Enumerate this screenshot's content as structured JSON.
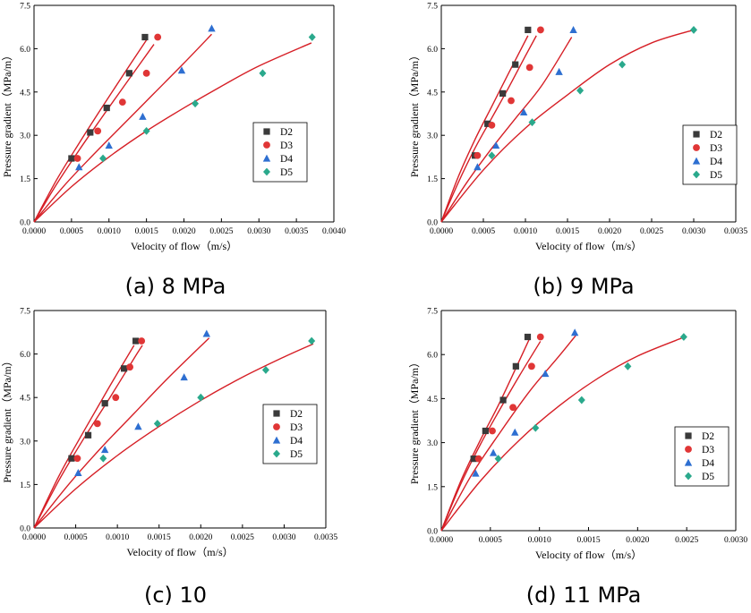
{
  "figure": {
    "series_colors": {
      "D2": "#3a3a3a",
      "D3": "#e03636",
      "D4": "#2e6fd1",
      "D5": "#2aa98c"
    },
    "fit_color": "#d61f26",
    "marker_shapes": {
      "D2": "square",
      "D3": "circle",
      "D4": "triangle",
      "D5": "diamond"
    }
  },
  "chart_data": [
    {
      "type": "scatter",
      "caption": "(a) 8 MPa",
      "xlabel": "Velocity of flow（m/s）",
      "ylabel": "Pressure gradient（MPa/m）",
      "xlim": [
        0,
        0.004
      ],
      "ylim": [
        0,
        7.5
      ],
      "xticks": [
        "0.0000",
        "0.0005",
        "0.0010",
        "0.0015",
        "0.0020",
        "0.0025",
        "0.0030",
        "0.0035",
        "0.0040"
      ],
      "yticks": [
        "0.0",
        "1.5",
        "3.0",
        "4.5",
        "6.0",
        "7.5"
      ],
      "legend": [
        "D2",
        "D3",
        "D4",
        "D5"
      ],
      "series": [
        {
          "name": "D2",
          "x": [
            0.0005,
            0.00075,
            0.00097,
            0.00127,
            0.00148
          ],
          "y": [
            2.2,
            3.1,
            3.95,
            5.15,
            6.4
          ]
        },
        {
          "name": "D3",
          "x": [
            0.00058,
            0.00085,
            0.00118,
            0.0015,
            0.00165
          ],
          "y": [
            2.2,
            3.15,
            4.15,
            5.15,
            6.4
          ]
        },
        {
          "name": "D4",
          "x": [
            0.0006,
            0.001,
            0.00145,
            0.00197,
            0.00237
          ],
          "y": [
            1.9,
            2.65,
            3.65,
            5.25,
            6.7
          ]
        },
        {
          "name": "D5",
          "x": [
            0.00092,
            0.0015,
            0.00215,
            0.00305,
            0.00371
          ],
          "y": [
            2.2,
            3.15,
            4.1,
            5.15,
            6.4
          ]
        }
      ],
      "fits": [
        {
          "name": "D2",
          "x": [
            0,
            0.0003,
            0.0006,
            0.0009,
            0.0012,
            0.0015
          ],
          "y": [
            0,
            1.45,
            2.72,
            3.94,
            5.13,
            6.3
          ]
        },
        {
          "name": "D3",
          "x": [
            0,
            0.0003,
            0.0006,
            0.0009,
            0.0012,
            0.0016
          ],
          "y": [
            0,
            1.3,
            2.48,
            3.6,
            4.7,
            6.15
          ]
        },
        {
          "name": "D4",
          "x": [
            0,
            0.0004,
            0.0008,
            0.0012,
            0.0016,
            0.002,
            0.00237
          ],
          "y": [
            0,
            1.25,
            2.35,
            3.4,
            4.45,
            5.5,
            6.5
          ]
        },
        {
          "name": "D5",
          "x": [
            0,
            0.0005,
            0.001,
            0.0015,
            0.002,
            0.0025,
            0.003,
            0.0037
          ],
          "y": [
            0,
            1.22,
            2.25,
            3.15,
            3.95,
            4.7,
            5.4,
            6.2
          ]
        }
      ]
    },
    {
      "type": "scatter",
      "caption": "(b) 9 MPa",
      "xlabel": "Velocity of flow（m/s）",
      "ylabel": "Pressure gradient（MPa/m）",
      "xlim": [
        0,
        0.0035
      ],
      "ylim": [
        0,
        7.5
      ],
      "xticks": [
        "0.0000",
        "0.0005",
        "0.0010",
        "0.0015",
        "0.0020",
        "0.0025",
        "0.0030",
        "0.0035"
      ],
      "yticks": [
        "0.0",
        "1.5",
        "3.0",
        "4.5",
        "6.0",
        "7.5"
      ],
      "legend": [
        "D2",
        "D3",
        "D4",
        "D5"
      ],
      "series": [
        {
          "name": "D2",
          "x": [
            0.0004,
            0.00055,
            0.00073,
            0.00088,
            0.00103
          ],
          "y": [
            2.3,
            3.4,
            4.45,
            5.45,
            6.65
          ]
        },
        {
          "name": "D3",
          "x": [
            0.00043,
            0.0006,
            0.00083,
            0.00105,
            0.00118
          ],
          "y": [
            2.3,
            3.35,
            4.2,
            5.35,
            6.65
          ]
        },
        {
          "name": "D4",
          "x": [
            0.00043,
            0.00065,
            0.00098,
            0.0014,
            0.00157
          ],
          "y": [
            1.9,
            2.65,
            3.8,
            5.2,
            6.65
          ]
        },
        {
          "name": "D5",
          "x": [
            0.0006,
            0.00108,
            0.00165,
            0.00215,
            0.003
          ],
          "y": [
            2.3,
            3.45,
            4.55,
            5.45,
            6.65
          ]
        }
      ],
      "fits": [
        {
          "name": "D2",
          "x": [
            0,
            0.0002,
            0.0004,
            0.0006,
            0.0008,
            0.00103
          ],
          "y": [
            0,
            1.55,
            2.85,
            4.0,
            5.15,
            6.45
          ]
        },
        {
          "name": "D3",
          "x": [
            0,
            0.0002,
            0.0004,
            0.0006,
            0.0008,
            0.001,
            0.00113
          ],
          "y": [
            0,
            1.35,
            2.55,
            3.6,
            4.65,
            5.75,
            6.45
          ]
        },
        {
          "name": "D4",
          "x": [
            0,
            0.0003,
            0.0006,
            0.0009,
            0.0012,
            0.00155
          ],
          "y": [
            0,
            1.35,
            2.55,
            3.65,
            4.75,
            6.4
          ]
        },
        {
          "name": "D5",
          "x": [
            0,
            0.0005,
            0.001,
            0.0015,
            0.002,
            0.0025,
            0.003
          ],
          "y": [
            0,
            1.8,
            3.25,
            4.4,
            5.45,
            6.2,
            6.65
          ]
        }
      ]
    },
    {
      "type": "scatter",
      "caption": "(c) 10",
      "xlabel": "Velocity of flow（m/s）",
      "ylabel": "Pressure gradient（MPa/m）",
      "xlim": [
        0,
        0.0035
      ],
      "ylim": [
        0,
        7.5
      ],
      "xticks": [
        "0.0000",
        "0.0005",
        "0.0010",
        "0.0015",
        "0.0020",
        "0.0025",
        "0.0030",
        "0.0035"
      ],
      "yticks": [
        "0.0",
        "1.5",
        "3.0",
        "4.5",
        "6.0",
        "7.5"
      ],
      "legend": [
        "D2",
        "D3",
        "D4",
        "D5"
      ],
      "series": [
        {
          "name": "D2",
          "x": [
            0.00045,
            0.00065,
            0.00085,
            0.00108,
            0.00122
          ],
          "y": [
            2.4,
            3.2,
            4.3,
            5.5,
            6.45
          ]
        },
        {
          "name": "D3",
          "x": [
            0.00052,
            0.00076,
            0.00098,
            0.00115,
            0.00129
          ],
          "y": [
            2.4,
            3.6,
            4.5,
            5.55,
            6.45
          ]
        },
        {
          "name": "D4",
          "x": [
            0.00053,
            0.00085,
            0.00125,
            0.0018,
            0.00207
          ],
          "y": [
            1.9,
            2.7,
            3.5,
            5.2,
            6.7
          ]
        },
        {
          "name": "D5",
          "x": [
            0.00083,
            0.00148,
            0.002,
            0.00278,
            0.00333
          ],
          "y": [
            2.4,
            3.6,
            4.5,
            5.45,
            6.45
          ]
        }
      ],
      "fits": [
        {
          "name": "D2",
          "x": [
            0,
            0.0003,
            0.0006,
            0.0009,
            0.0012
          ],
          "y": [
            0,
            1.8,
            3.35,
            4.85,
            6.3
          ]
        },
        {
          "name": "D3",
          "x": [
            0,
            0.0003,
            0.0006,
            0.0009,
            0.0012,
            0.0013
          ],
          "y": [
            0,
            1.65,
            3.1,
            4.45,
            5.85,
            6.3
          ]
        },
        {
          "name": "D4",
          "x": [
            0,
            0.0004,
            0.0008,
            0.0012,
            0.0016,
            0.0021
          ],
          "y": [
            0,
            1.45,
            2.75,
            3.95,
            5.15,
            6.55
          ]
        },
        {
          "name": "D5",
          "x": [
            0,
            0.0005,
            0.001,
            0.0015,
            0.002,
            0.0025,
            0.003,
            0.00335
          ],
          "y": [
            0,
            1.35,
            2.5,
            3.5,
            4.4,
            5.2,
            5.9,
            6.35
          ]
        }
      ]
    },
    {
      "type": "scatter",
      "caption": "(d) 11 MPa",
      "xlabel": "Velocity of flow（m/s）",
      "ylabel": "Pressure gradient（MPa/m）",
      "xlim": [
        0,
        0.003
      ],
      "ylim": [
        0,
        7.5
      ],
      "xticks": [
        "0.0000",
        "0.0005",
        "0.0010",
        "0.0015",
        "0.0020",
        "0.0025",
        "0.0030"
      ],
      "yticks": [
        "0.0",
        "1.5",
        "3.0",
        "4.5",
        "6.0",
        "7.5"
      ],
      "legend": [
        "D2",
        "D3",
        "D4",
        "D5"
      ],
      "series": [
        {
          "name": "D2",
          "x": [
            0.00033,
            0.00045,
            0.00063,
            0.00076,
            0.00088
          ],
          "y": [
            2.45,
            3.4,
            4.45,
            5.6,
            6.6
          ]
        },
        {
          "name": "D3",
          "x": [
            0.00038,
            0.00052,
            0.00073,
            0.00092,
            0.00101
          ],
          "y": [
            2.45,
            3.4,
            4.2,
            5.6,
            6.6
          ]
        },
        {
          "name": "D4",
          "x": [
            0.00035,
            0.00053,
            0.00075,
            0.00106,
            0.00136
          ],
          "y": [
            1.95,
            2.65,
            3.35,
            5.35,
            6.75
          ]
        },
        {
          "name": "D5",
          "x": [
            0.00058,
            0.00096,
            0.00143,
            0.0019,
            0.00247
          ],
          "y": [
            2.45,
            3.5,
            4.45,
            5.6,
            6.6
          ]
        }
      ],
      "fits": [
        {
          "name": "D2",
          "x": [
            0,
            0.0002,
            0.0004,
            0.0006,
            0.0009
          ],
          "y": [
            0,
            1.7,
            3.1,
            4.4,
            6.55
          ]
        },
        {
          "name": "D3",
          "x": [
            0,
            0.0002,
            0.0004,
            0.0006,
            0.0008,
            0.00101
          ],
          "y": [
            0,
            1.6,
            2.95,
            4.15,
            5.3,
            6.45
          ]
        },
        {
          "name": "D4",
          "x": [
            0,
            0.0003,
            0.0006,
            0.0009,
            0.0012,
            0.00137
          ],
          "y": [
            0,
            1.85,
            3.35,
            4.75,
            5.95,
            6.65
          ]
        },
        {
          "name": "D5",
          "x": [
            0,
            0.0004,
            0.0008,
            0.0012,
            0.0016,
            0.002,
            0.00248
          ],
          "y": [
            0,
            1.7,
            3.1,
            4.25,
            5.2,
            5.95,
            6.6
          ]
        }
      ]
    }
  ]
}
